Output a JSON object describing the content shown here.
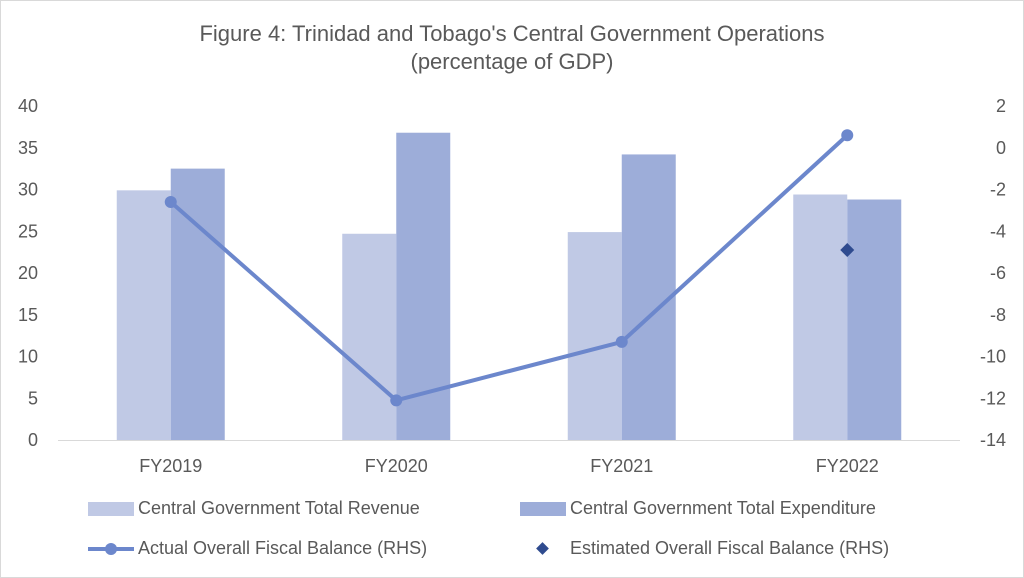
{
  "title_line1": "Figure 4: Trinidad and Tobago's Central Government Operations",
  "title_line2": "(percentage of GDP)",
  "chart_data": {
    "type": "bar",
    "categories": [
      "FY2019",
      "FY2020",
      "FY2021",
      "FY2022"
    ],
    "series": [
      {
        "name": "Central Government Total Revenue",
        "type": "bar",
        "axis": "left",
        "color": "#c0c9e5",
        "values": [
          29.9,
          24.7,
          24.9,
          29.4
        ]
      },
      {
        "name": "Central Government Total Expenditure",
        "type": "bar",
        "axis": "left",
        "color": "#9dadd9",
        "values": [
          32.5,
          36.8,
          34.2,
          28.8
        ]
      },
      {
        "name": "Actual Overall Fiscal Balance (RHS)",
        "type": "line",
        "axis": "right",
        "color": "#6c87cc",
        "values": [
          -2.6,
          -12.1,
          -9.3,
          0.6
        ]
      },
      {
        "name": "Estimated Overall Fiscal Balance (RHS)",
        "type": "scatter",
        "axis": "right",
        "color": "#2f4b8f",
        "values": [
          null,
          null,
          null,
          -4.9
        ]
      }
    ],
    "y_left": {
      "min": 0,
      "max": 40,
      "step": 5,
      "ticks": [
        "0",
        "5",
        "10",
        "15",
        "20",
        "25",
        "30",
        "35",
        "40"
      ]
    },
    "y_right": {
      "min": -14,
      "max": 2,
      "step": 2,
      "ticks": [
        "-14",
        "-12",
        "-10",
        "-8",
        "-6",
        "-4",
        "-2",
        "0",
        "2"
      ]
    },
    "legend_position": "bottom"
  }
}
